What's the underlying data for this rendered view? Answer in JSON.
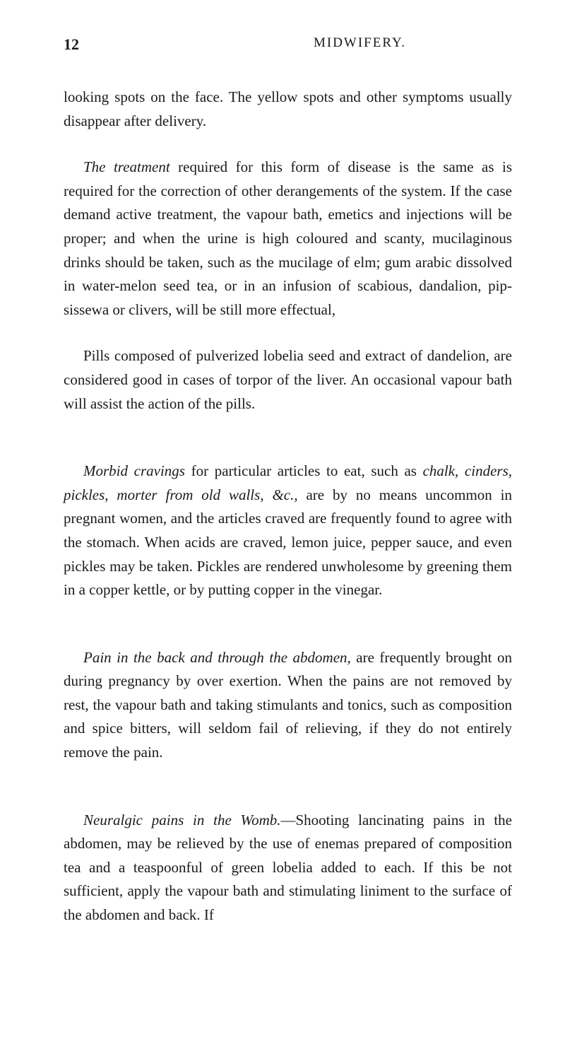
{
  "header": {
    "pageNumber": "12",
    "runningHead": "MIDWIFERY."
  },
  "paragraphs": {
    "p1": "looking spots on the face. The yellow spots and other symptoms usually disappear after delivery.",
    "p2_italic": "The treatment",
    "p2_rest": " required for this form of disease is the same as is required for the correction of other derangements of the system. If the case demand active treatment, the vapour bath, emetics and injections will be proper; and when the urine is high coloured and scanty, mucilaginous drinks should be taken, such as the mucilage of elm; gum arabic dissolved in water-melon seed tea, or in an infusion of scabious, dandalion, pip-sissewa or clivers, will be still more effectual,",
    "p3": "Pills composed of pulverized lobelia seed and extract of dandelion, are considered good in cases of torpor of the liver. An occasional vapour bath will assist the action of the pills.",
    "p4_italic": "Morbid cravings",
    "p4_mid1": " for particular articles to eat, such as ",
    "p4_italic2": "chalk, cinders, pickles, morter from old walls, &c.,",
    "p4_rest": " are by no means uncommon in pregnant women, and the articles craved are frequently found to agree with the stomach. When acids are craved, lemon juice, pepper sauce, and even pickles may be taken. Pickles are rendered unwholesome by greening them in a copper kettle, or by putting copper in the vinegar.",
    "p5_italic": "Pain in the back and through the abdomen,",
    "p5_rest": " are frequently brought on during pregnancy by over exertion. When the pains are not removed by rest, the vapour bath and taking stimulants and tonics, such as composition and spice bitters, will seldom fail of relieving, if they do not entirely remove the pain.",
    "p6_italic": "Neuralgic pains in the Womb.",
    "p6_rest": "—Shooting lancinating pains in the abdomen, may be relieved by the use of enemas prepared of composition tea and a teaspoonful of green lobelia added to each. If this be not sufficient, apply the vapour bath and stimulating liniment to the surface of the abdomen and back. If"
  }
}
